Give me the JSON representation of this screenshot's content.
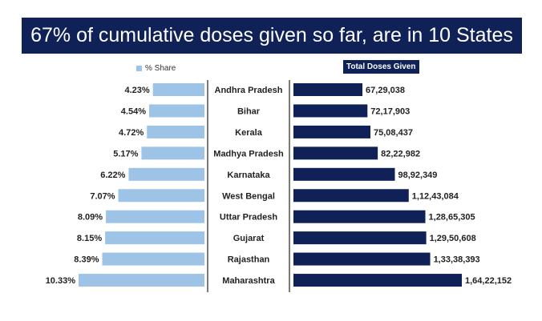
{
  "title": "67% of cumulative doses given so far, are in 10 States",
  "colors": {
    "banner": "#0f2157",
    "share_bar": "#9dc3e6",
    "doses_bar": "#0f2157"
  },
  "chart_data": [
    {
      "type": "bar",
      "orientation": "horizontal",
      "title": "67% of cumulative doses given so far, are in 10 States",
      "categories": [
        "Andhra Pradesh",
        "Bihar",
        "Kerala",
        "Madhya Pradesh",
        "Karnataka",
        "West Bengal",
        "Uttar Pradesh",
        "Gujarat",
        "Rajasthan",
        "Maharashtra"
      ],
      "series": [
        {
          "name": "% Share",
          "values": [
            4.23,
            4.54,
            4.72,
            5.17,
            6.22,
            7.07,
            8.09,
            8.15,
            8.39,
            10.33
          ],
          "labels": [
            "4.23%",
            "4.54%",
            "4.72%",
            "5.17%",
            "6.22%",
            "7.07%",
            "8.09%",
            "8.15%",
            "8.39%",
            "10.33%"
          ],
          "color": "#9dc3e6",
          "direction": "leftward"
        },
        {
          "name": "Total Doses Given",
          "values": [
            6729038,
            7217903,
            7508437,
            8222982,
            9892349,
            11243084,
            12865305,
            12950608,
            13338393,
            16422152
          ],
          "labels": [
            "67,29,038",
            "72,17,903",
            "75,08,437",
            "82,22,982",
            "98,92,349",
            "1,12,43,084",
            "1,28,65,305",
            "1,29,50,608",
            "1,33,38,393",
            "1,64,22,152"
          ],
          "color": "#0f2157",
          "direction": "rightward"
        }
      ],
      "legend": "top",
      "grid": false
    }
  ]
}
